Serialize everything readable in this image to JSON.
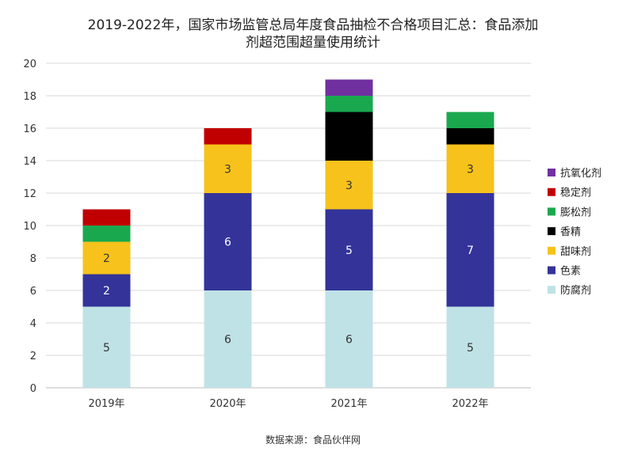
{
  "chart_data": {
    "type": "bar",
    "stacked": true,
    "title_lines": [
      "2019-2022年，国家市场监管总局年度食品抽检不合格项目汇总：食品添加",
      "剂超范围超量使用统计"
    ],
    "categories": [
      "2019年",
      "2020年",
      "2021年",
      "2022年"
    ],
    "ylim": [
      0,
      20
    ],
    "yticks": [
      0,
      2,
      4,
      6,
      8,
      10,
      12,
      14,
      16,
      18,
      20
    ],
    "grid": true,
    "legend_position": "right",
    "series": [
      {
        "name": "防腐剂",
        "color": "#bfe2e6",
        "values": [
          5,
          6,
          6,
          5
        ],
        "labels": [
          "5",
          "6",
          "6",
          "5"
        ]
      },
      {
        "name": "色素",
        "color": "#333399",
        "values": [
          2,
          6,
          5,
          7
        ],
        "labels": [
          "2",
          "6",
          "5",
          "7"
        ]
      },
      {
        "name": "甜味剂",
        "color": "#f7c21b",
        "values": [
          2,
          3,
          3,
          3
        ],
        "labels": [
          "2",
          "3",
          "3",
          "3"
        ]
      },
      {
        "name": "香精",
        "color": "#000000",
        "values": [
          0,
          0,
          3,
          1
        ],
        "labels": [
          "",
          "",
          "",
          ""
        ]
      },
      {
        "name": "膨松剂",
        "color": "#1aa84f",
        "values": [
          1,
          0,
          1,
          1
        ],
        "labels": [
          "",
          "",
          "",
          ""
        ]
      },
      {
        "name": "稳定剂",
        "color": "#c00000",
        "values": [
          1,
          1,
          0,
          0
        ],
        "labels": [
          "",
          "",
          "",
          ""
        ]
      },
      {
        "name": "抗氧化剂",
        "color": "#7030a0",
        "values": [
          0,
          0,
          1,
          0
        ],
        "labels": [
          "",
          "",
          "",
          ""
        ]
      }
    ],
    "legend_order": [
      "抗氧化剂",
      "稳定剂",
      "膨松剂",
      "香精",
      "甜味剂",
      "色素",
      "防腐剂"
    ],
    "source": "数据来源：食品伙伴网"
  }
}
